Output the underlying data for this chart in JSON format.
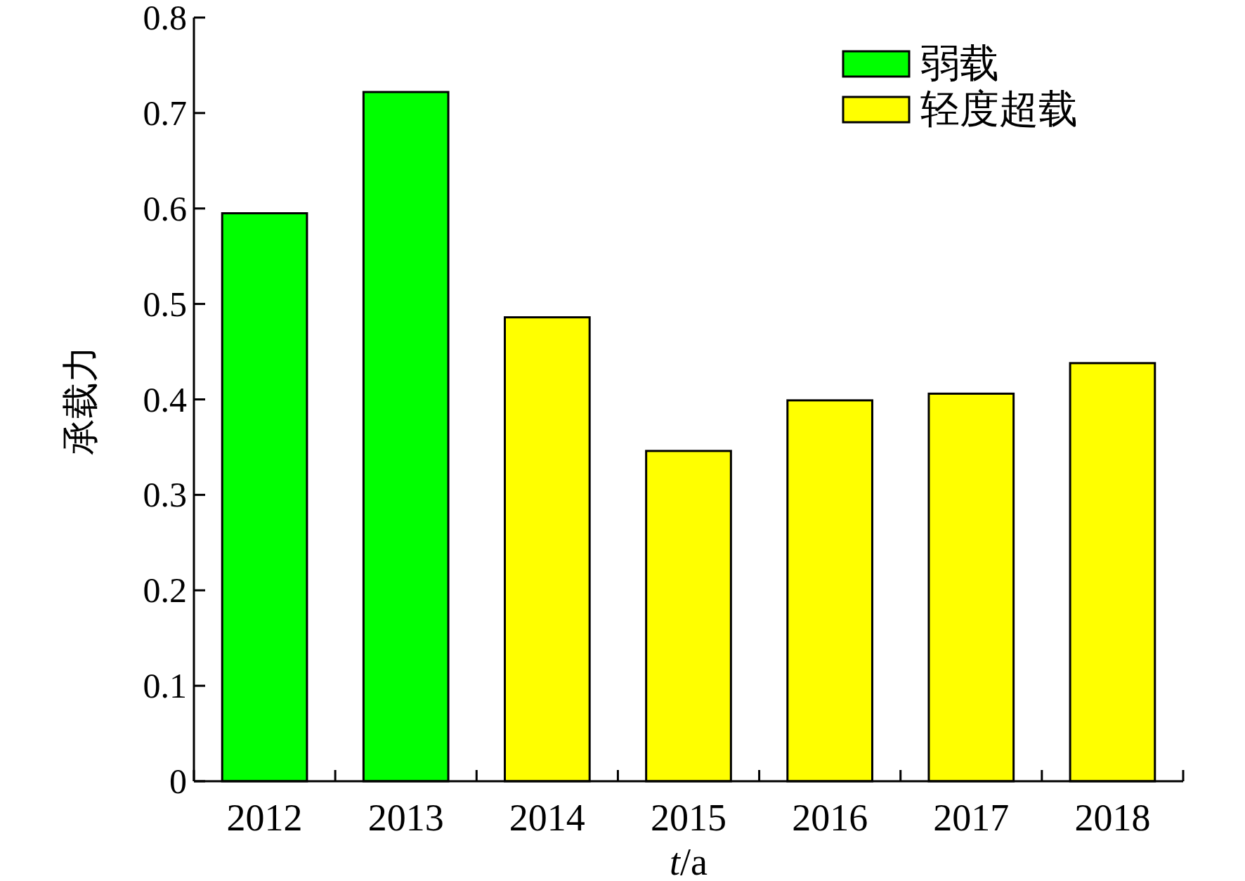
{
  "chart_data": {
    "type": "bar",
    "xlabel": "*t*/a",
    "ylabel": "承载力",
    "categories": [
      "2012",
      "2013",
      "2014",
      "2015",
      "2016",
      "2017",
      "2018"
    ],
    "series": [
      {
        "name": "弱载",
        "color": "#00ff00",
        "values": [
          0.595,
          0.722,
          null,
          null,
          null,
          null,
          null
        ]
      },
      {
        "name": "轻度超载",
        "color": "#ffff00",
        "values": [
          null,
          null,
          0.486,
          0.346,
          0.399,
          0.406,
          0.438
        ]
      }
    ],
    "ylim": [
      0,
      0.8
    ],
    "yticks": [
      0,
      0.1,
      0.2,
      0.3,
      0.4,
      0.5,
      0.6,
      0.7,
      0.8
    ],
    "legend": "top right",
    "grid": false
  }
}
